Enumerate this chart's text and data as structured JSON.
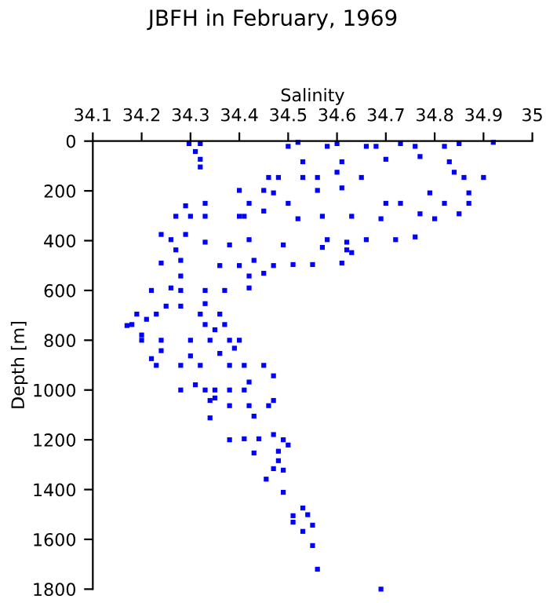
{
  "chart_data": {
    "type": "scatter",
    "title": "JBFH in February, 1969",
    "xlabel": "Salinity",
    "ylabel": "Depth [m]",
    "xlim": [
      34.1,
      35
    ],
    "ylim": [
      1800,
      0
    ],
    "xticks": [
      34.1,
      34.2,
      34.3,
      34.4,
      34.5,
      34.6,
      34.7,
      34.8,
      34.9,
      35
    ],
    "yticks": [
      0,
      200,
      400,
      600,
      800,
      1000,
      1200,
      1400,
      1600,
      1800
    ],
    "grid": false,
    "marker": "square",
    "series": [
      {
        "color": "#0000ff",
        "x": [
          34.297,
          34.32,
          34.31,
          34.32,
          34.32,
          34.5,
          34.52,
          34.53,
          34.58,
          34.6,
          34.61,
          34.66,
          34.68,
          34.7,
          34.73,
          34.76,
          34.77,
          34.82,
          34.83,
          34.84,
          34.85,
          34.86,
          34.87,
          34.87,
          34.9,
          34.92,
          34.79,
          34.82,
          34.85,
          34.8,
          34.77,
          34.73,
          34.7,
          34.69,
          34.63,
          34.57,
          34.52,
          34.65,
          34.6,
          34.56,
          34.53,
          34.48,
          34.46,
          34.47,
          34.45,
          34.42,
          34.4,
          34.5,
          34.56,
          34.61,
          34.27,
          34.3,
          34.33,
          34.4,
          34.41,
          34.45,
          34.33,
          34.29,
          34.24,
          34.26,
          34.29,
          34.33,
          34.38,
          34.42,
          34.49,
          34.58,
          34.62,
          34.66,
          34.72,
          34.76,
          34.62,
          34.63,
          34.57,
          34.27,
          34.28,
          34.24,
          34.28,
          34.43,
          34.47,
          34.51,
          34.55,
          34.61,
          34.36,
          34.4,
          34.42,
          34.45,
          34.22,
          34.26,
          34.28,
          34.33,
          34.37,
          34.42,
          34.25,
          34.28,
          34.33,
          34.19,
          34.23,
          34.32,
          34.36,
          34.18,
          34.17,
          34.21,
          34.33,
          34.37,
          34.35,
          34.2,
          34.2,
          34.24,
          34.3,
          34.34,
          34.38,
          34.4,
          34.24,
          34.22,
          34.3,
          34.36,
          34.39,
          34.23,
          34.28,
          34.32,
          34.38,
          34.41,
          34.45,
          34.47,
          34.28,
          34.31,
          34.33,
          34.35,
          34.38,
          34.41,
          34.42,
          34.34,
          34.35,
          34.38,
          34.42,
          34.46,
          34.47,
          34.34,
          34.43,
          34.38,
          34.41,
          34.44,
          34.47,
          34.49,
          34.5,
          34.43,
          34.48,
          34.48,
          34.47,
          34.49,
          34.455,
          34.49,
          34.53,
          34.51,
          34.54,
          34.51,
          34.55,
          34.53,
          34.55,
          34.56,
          34.69
        ],
        "values": [
          10,
          10,
          42,
          73,
          104,
          21,
          5,
          83,
          21,
          10,
          83,
          21,
          21,
          73,
          10,
          21,
          62,
          21,
          83,
          125,
          10,
          146,
          208,
          250,
          146,
          5,
          208,
          250,
          292,
          312,
          292,
          250,
          250,
          312,
          302,
          302,
          312,
          146,
          125,
          146,
          146,
          146,
          146,
          208,
          198,
          250,
          198,
          250,
          198,
          188,
          302,
          302,
          302,
          302,
          302,
          281,
          250,
          260,
          375,
          396,
          375,
          406,
          417,
          396,
          417,
          396,
          406,
          396,
          396,
          385,
          437,
          448,
          427,
          437,
          479,
          490,
          542,
          479,
          500,
          496,
          496,
          490,
          500,
          500,
          542,
          531,
          600,
          590,
          600,
          600,
          600,
          590,
          663,
          663,
          653,
          695,
          695,
          695,
          695,
          737,
          741,
          716,
          737,
          737,
          758,
          779,
          800,
          800,
          800,
          800,
          800,
          800,
          842,
          874,
          863,
          853,
          832,
          901,
          901,
          901,
          901,
          901,
          901,
          943,
          1000,
          979,
          1000,
          1000,
          1000,
          1000,
          968,
          1042,
          1032,
          1063,
          1063,
          1063,
          1042,
          1112,
          1105,
          1200,
          1196,
          1196,
          1179,
          1200,
          1221,
          1253,
          1246,
          1284,
          1316,
          1322,
          1358,
          1411,
          1474,
          1505,
          1501,
          1531,
          1543,
          1568,
          1625,
          1720,
          1800
        ]
      }
    ]
  }
}
